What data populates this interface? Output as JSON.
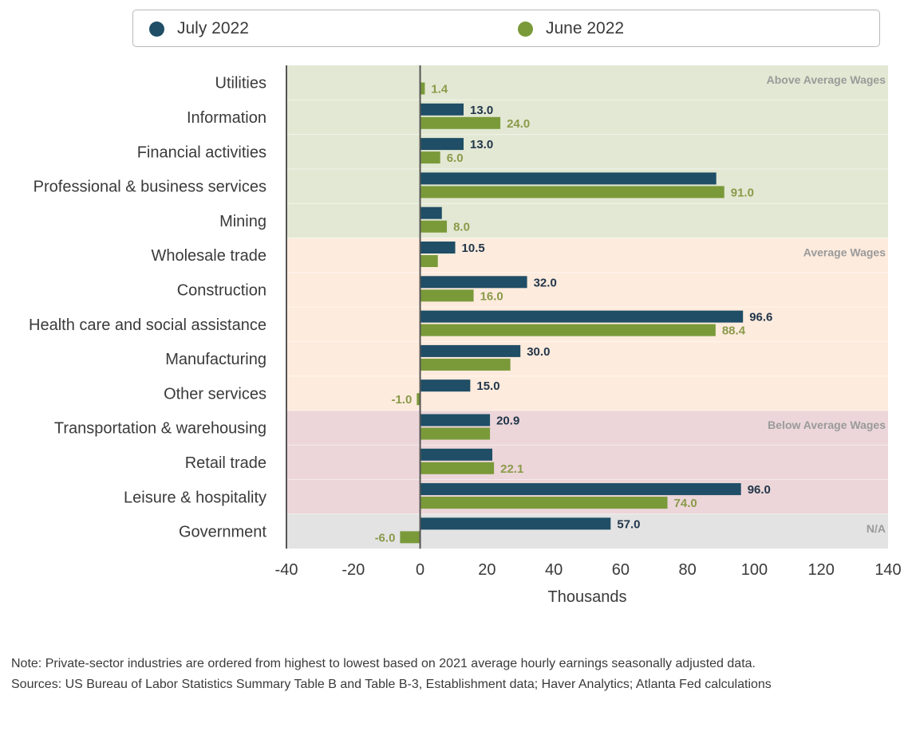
{
  "colors": {
    "july": "#1f4e66",
    "june": "#7a9a3a",
    "band_above": "#e2e8d3",
    "band_average": "#fdebdd",
    "band_below": "#ecd6d9",
    "band_na": "#e3e3e3",
    "axis": "#555555"
  },
  "legend": {
    "items": [
      {
        "label": "July 2022",
        "color": "#1f4e66"
      },
      {
        "label": "June 2022",
        "color": "#7a9a3a"
      }
    ]
  },
  "chart_data": {
    "type": "bar",
    "orientation": "horizontal",
    "categories": [
      "Utilities",
      "Information",
      "Financial activities",
      "Professional & business services",
      "Mining",
      "Wholesale trade",
      "Construction",
      "Health care and social assistance",
      "Manufacturing",
      "Other services",
      "Transportation & warehousing",
      "Retail trade",
      "Leisure & hospitality",
      "Government"
    ],
    "series": [
      {
        "name": "July 2022",
        "values": [
          0.0,
          13.0,
          13.0,
          88.6,
          6.5,
          10.5,
          32.0,
          96.6,
          30.0,
          15.0,
          20.9,
          21.6,
          96.0,
          57.0
        ],
        "labels": [
          "",
          "13.0",
          "13.0",
          "",
          "",
          "10.5",
          "32.0",
          "96.6",
          "30.0",
          "15.0",
          "20.9",
          "",
          "96.0",
          "57.0"
        ]
      },
      {
        "name": "June 2022",
        "values": [
          1.4,
          24.0,
          6.0,
          91.0,
          8.0,
          5.3,
          16.0,
          88.4,
          27.0,
          -1.0,
          20.9,
          22.1,
          74.0,
          -6.0
        ],
        "labels": [
          "1.4",
          "24.0",
          "6.0",
          "91.0",
          "8.0",
          "",
          "16.0",
          "88.4",
          "",
          "-1.0",
          "",
          "22.1",
          "74.0",
          "-6.0"
        ]
      }
    ],
    "xlim": [
      -40,
      140
    ],
    "xticks": [
      -40,
      -20,
      0,
      20,
      40,
      60,
      80,
      100,
      120,
      140
    ],
    "xlabel": "Thousands",
    "bands": [
      {
        "label": "Above Average Wages",
        "from_category": 0,
        "to_category": 4,
        "key": "band_above"
      },
      {
        "label": "Average Wages",
        "from_category": 5,
        "to_category": 9,
        "key": "band_average"
      },
      {
        "label": "Below Average Wages",
        "from_category": 10,
        "to_category": 12,
        "key": "band_below"
      },
      {
        "label": "N/A",
        "from_category": 13,
        "to_category": 13,
        "key": "band_na"
      }
    ]
  },
  "notes": {
    "note": "Note: Private-sector industries are ordered from highest to lowest based on 2021 average hourly earnings seasonally adjusted data.",
    "sources": "Sources: US Bureau of Labor Statistics Summary Table B and Table B-3, Establishment data; Haver Analytics; Atlanta Fed calculations"
  }
}
